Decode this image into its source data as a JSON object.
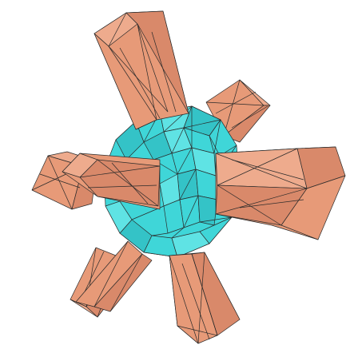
{
  "figure": {
    "subject": "",
    "colors": {
      "sphere_fill": "#3fd6d8",
      "sphere_shade": "#34c3c7",
      "sphere_light": "#5fe3e4",
      "prism_fill": "#e79a78",
      "prism_shade": "#d9896a",
      "prism_light": "#eeab8d",
      "edge_stroke": "#2a2a2a",
      "background": "#ffffff"
    }
  }
}
